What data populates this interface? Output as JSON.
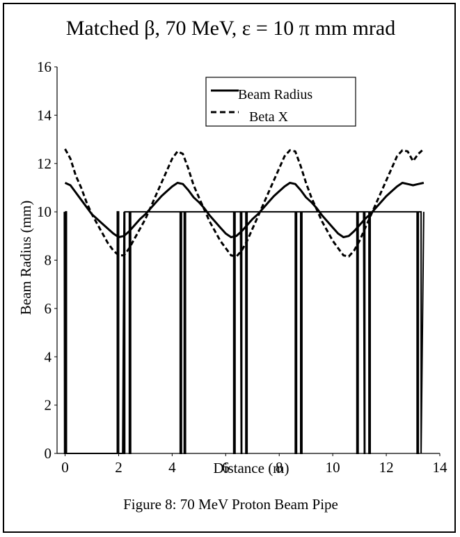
{
  "chart_data": {
    "type": "line",
    "title": "Matched β,  70 MeV,  ε = 10 π mm mrad",
    "caption": "Figure 8: 70 MeV Proton Beam Pipe",
    "xlabel": "Distance (m)",
    "ylabel": "Beam Radius (mm)",
    "xlim": [
      -0.3,
      14
    ],
    "ylim": [
      0,
      16
    ],
    "xticks": [
      0,
      2,
      4,
      6,
      8,
      10,
      12,
      14
    ],
    "yticks": [
      0,
      2,
      4,
      6,
      8,
      10,
      12,
      14,
      16
    ],
    "grid": false,
    "legend_position": "top-center",
    "series": [
      {
        "name": "Beam Radius",
        "style": "solid",
        "x": [
          0,
          0.2,
          0.4,
          0.6,
          0.8,
          1.0,
          1.2,
          1.4,
          1.6,
          1.8,
          2.0,
          2.2,
          2.4,
          2.6,
          2.8,
          3.0,
          3.2,
          3.4,
          3.6,
          3.8,
          4.0,
          4.2,
          4.4,
          4.6,
          4.8,
          5.0,
          5.2,
          5.4,
          5.6,
          5.8,
          6.0,
          6.2,
          6.4,
          6.6,
          6.8,
          7.0,
          7.2,
          7.4,
          7.6,
          7.8,
          8.0,
          8.2,
          8.4,
          8.6,
          8.8,
          9.0,
          9.2,
          9.4,
          9.6,
          9.8,
          10.0,
          10.2,
          10.4,
          10.6,
          10.8,
          11.0,
          11.2,
          11.4,
          11.6,
          11.8,
          12.0,
          12.2,
          12.4,
          12.6,
          12.8,
          13.0,
          13.2,
          13.4
        ],
        "y": [
          11.2,
          11.1,
          10.8,
          10.5,
          10.2,
          9.9,
          9.7,
          9.5,
          9.3,
          9.1,
          8.95,
          9.0,
          9.2,
          9.45,
          9.7,
          9.9,
          10.15,
          10.4,
          10.65,
          10.85,
          11.05,
          11.2,
          11.15,
          10.9,
          10.6,
          10.4,
          10.15,
          9.85,
          9.6,
          9.35,
          9.1,
          8.95,
          9.0,
          9.2,
          9.45,
          9.7,
          9.9,
          10.15,
          10.4,
          10.65,
          10.85,
          11.05,
          11.2,
          11.15,
          10.9,
          10.6,
          10.4,
          10.15,
          9.85,
          9.6,
          9.35,
          9.1,
          8.95,
          9.0,
          9.2,
          9.45,
          9.7,
          9.9,
          10.15,
          10.4,
          10.65,
          10.85,
          11.05,
          11.2,
          11.15,
          11.1,
          11.15,
          11.2
        ]
      },
      {
        "name": "Beta X",
        "style": "dashed",
        "x": [
          0,
          0.2,
          0.4,
          0.6,
          0.8,
          1.0,
          1.2,
          1.4,
          1.6,
          1.8,
          2.0,
          2.2,
          2.4,
          2.6,
          2.8,
          3.0,
          3.2,
          3.4,
          3.6,
          3.8,
          4.0,
          4.2,
          4.4,
          4.6,
          4.8,
          5.0,
          5.2,
          5.4,
          5.6,
          5.8,
          6.0,
          6.2,
          6.4,
          6.6,
          6.8,
          7.0,
          7.2,
          7.4,
          7.6,
          7.8,
          8.0,
          8.2,
          8.4,
          8.6,
          8.8,
          9.0,
          9.2,
          9.4,
          9.6,
          9.8,
          10.0,
          10.2,
          10.4,
          10.6,
          10.8,
          11.0,
          11.2,
          11.4,
          11.6,
          11.8,
          12.0,
          12.2,
          12.4,
          12.6,
          12.8,
          13.0,
          13.2,
          13.4
        ],
        "y": [
          12.6,
          12.2,
          11.5,
          11.0,
          10.4,
          9.9,
          9.5,
          9.1,
          8.7,
          8.4,
          8.2,
          8.2,
          8.5,
          8.9,
          9.3,
          9.7,
          10.2,
          10.7,
          11.2,
          11.7,
          12.2,
          12.5,
          12.4,
          11.8,
          11.1,
          10.6,
          10.1,
          9.6,
          9.2,
          8.8,
          8.5,
          8.2,
          8.15,
          8.4,
          8.8,
          9.3,
          9.8,
          10.3,
          10.8,
          11.3,
          11.8,
          12.3,
          12.55,
          12.5,
          11.9,
          11.2,
          10.6,
          10.1,
          9.6,
          9.2,
          8.8,
          8.5,
          8.2,
          8.15,
          8.4,
          8.8,
          9.3,
          9.8,
          10.3,
          10.8,
          11.3,
          11.8,
          12.3,
          12.55,
          12.5,
          12.1,
          12.4,
          12.6
        ]
      }
    ],
    "aperture": {
      "x": [
        -0.03,
        -0.02,
        0.02,
        0.02,
        0.05,
        0.05,
        1.95,
        1.95,
        2.0,
        2.0,
        2.15,
        2.2,
        2.2,
        2.23,
        2.23,
        2.4,
        2.4,
        2.45,
        2.45,
        4.3,
        4.3,
        4.35,
        4.35,
        4.45,
        4.45,
        4.5,
        4.5,
        6.3,
        6.3,
        6.35,
        6.35,
        6.55,
        6.58,
        6.6,
        6.6,
        6.75,
        6.75,
        6.8,
        6.8,
        8.6,
        8.6,
        8.65,
        8.65,
        8.8,
        8.8,
        8.85,
        8.85,
        10.9,
        10.9,
        10.95,
        10.95,
        11.15,
        11.18,
        11.2,
        11.2,
        11.35,
        11.35,
        11.4,
        11.4,
        13.15,
        13.15,
        13.2,
        13.2,
        13.3,
        13.3,
        13.4
      ],
      "y": [
        10,
        0,
        0,
        10,
        10,
        0,
        0,
        10,
        10,
        0,
        0,
        10,
        0,
        0,
        10,
        10,
        0,
        0,
        10,
        10,
        0,
        0,
        10,
        10,
        0,
        0,
        10,
        10,
        0,
        0,
        10,
        10,
        0,
        0,
        10,
        10,
        0,
        0,
        10,
        10,
        0,
        0,
        10,
        10,
        0,
        0,
        10,
        10,
        0,
        0,
        10,
        10,
        0,
        0,
        10,
        10,
        0,
        0,
        10,
        10,
        0,
        0,
        10,
        10,
        0,
        10
      ]
    }
  }
}
